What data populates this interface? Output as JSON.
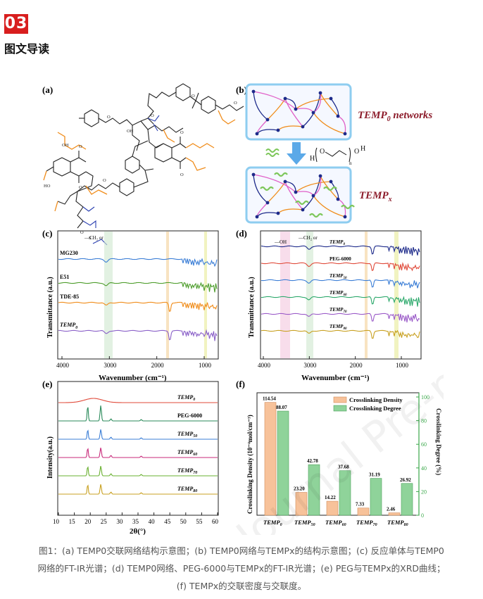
{
  "section": {
    "number": "03",
    "title": "图文导读"
  },
  "panels": {
    "a": {
      "label": "(a)"
    },
    "b": {
      "label": "(b)",
      "text_networks_prefix": "TEMP",
      "text_networks_sub": "0",
      "text_networks_suffix": " networks",
      "text_tempx_prefix": "TEMP",
      "text_tempx_sub": "x"
    },
    "c": {
      "label": "(c)",
      "xlabel": "Wavenumber (cm⁻¹)",
      "ylabel": "Transmittance (a.u.)",
      "xticks": [
        "4000",
        "3000",
        "2000",
        "1000"
      ],
      "traces": [
        "MG230",
        "E51",
        "TDE-85",
        "TEMP"
      ],
      "trace_sub": "0",
      "annot": "—CH₂ or"
    },
    "d": {
      "label": "(d)",
      "xlabel": "Wavenumber (cm⁻¹)",
      "ylabel": "Transmittance (a.u.)",
      "xticks": [
        "4000",
        "3000",
        "2000",
        "1000"
      ],
      "annot_oh": "—OH",
      "annot_ch2": "—CH₂ or",
      "traces": [
        {
          "name": "TEMP",
          "sub": "0"
        },
        {
          "name": "PEG-6000",
          "sub": ""
        },
        {
          "name": "TEMP",
          "sub": "50"
        },
        {
          "name": "TEMP",
          "sub": "60"
        },
        {
          "name": "TEMP",
          "sub": "70"
        },
        {
          "name": "TEMP",
          "sub": "80"
        }
      ]
    },
    "e": {
      "label": "(e)",
      "xlabel": "2θ(°)",
      "ylabel": "Intensity(a.u.)",
      "xticks": [
        "10",
        "15",
        "20",
        "25",
        "30",
        "35",
        "40",
        "45",
        "50",
        "55",
        "60"
      ],
      "traces": [
        {
          "name": "TEMP",
          "sub": "0"
        },
        {
          "name": "PEG-6000",
          "sub": ""
        },
        {
          "name": "TEMP",
          "sub": "50"
        },
        {
          "name": "TEMP",
          "sub": "60"
        },
        {
          "name": "TEMP",
          "sub": "70"
        },
        {
          "name": "TEMP",
          "sub": "80"
        }
      ]
    },
    "f": {
      "label": "(f)"
    }
  },
  "chart_data": {
    "type": "bar",
    "categories": [
      "TEMP0",
      "TEMP50",
      "TEMP60",
      "TEMP70",
      "TEMP80"
    ],
    "category_labels": [
      {
        "name": "TEMP",
        "sub": "0"
      },
      {
        "name": "TEMP",
        "sub": "50"
      },
      {
        "name": "TEMP",
        "sub": "60"
      },
      {
        "name": "TEMP",
        "sub": "70"
      },
      {
        "name": "TEMP",
        "sub": "80"
      }
    ],
    "series": [
      {
        "name": "Crosslinking Density",
        "values": [
          114.54,
          23.2,
          14.22,
          7.33,
          2.46
        ],
        "labels": [
          "114.54",
          "23.20",
          "14.22",
          "7.33",
          "2.46"
        ],
        "color": "#f7c29a",
        "axis": "left"
      },
      {
        "name": "Crosslinking Degree",
        "values": [
          88.07,
          42.78,
          37.68,
          31.19,
          26.92
        ],
        "labels": [
          "88.07",
          "42.78",
          "37.68",
          "31.19",
          "26.92"
        ],
        "color": "#8fd39a",
        "axis": "right"
      }
    ],
    "ylabel": "Crosslinking Density (10⁻⁴mol/cm⁻³)",
    "y2label": "Crosslinking Degree (%)",
    "ylim": [
      0,
      120
    ],
    "y2lim": [
      0,
      100
    ],
    "y2ticks": [
      "0",
      "20",
      "40",
      "60",
      "80",
      "100"
    ],
    "legend": "top-right"
  },
  "caption": {
    "line1": "图1：(a) TEMP0交联网络结构示意图；(b) TEMP0网络与TEMPx的结构示意图；(c) 反应单体与TEMP0",
    "line2": "网络的FT-IR光谱；(d) TEMP0网络、PEG-6000与TEMPx的FT-IR光谱；(e) PEG与TEMPx的XRD曲线；",
    "line3": "(f) TEMPx的交联密度与交联度。"
  },
  "watermark": "Journal Pre-proofs"
}
